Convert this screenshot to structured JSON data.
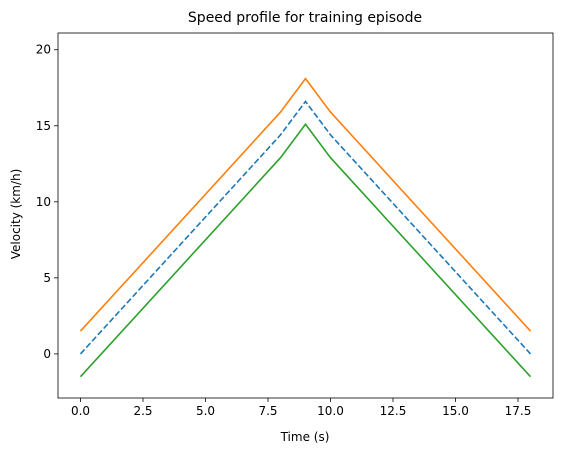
{
  "chart_data": {
    "type": "line",
    "title": "Speed profile for training episode",
    "xlabel": "Time (s)",
    "ylabel": "Velocity (km/h)",
    "xlim": [
      -0.9,
      18.9
    ],
    "ylim": [
      -2.9,
      21.1
    ],
    "xticks": [
      0.0,
      2.5,
      5.0,
      7.5,
      10.0,
      12.5,
      15.0,
      17.5
    ],
    "xtick_labels": [
      "0.0",
      "2.5",
      "5.0",
      "7.5",
      "10.0",
      "12.5",
      "15.0",
      "17.5"
    ],
    "yticks": [
      0,
      5,
      10,
      15,
      20
    ],
    "ytick_labels": [
      "0",
      "5",
      "10",
      "15",
      "20"
    ],
    "grid": false,
    "legend": "none",
    "x": [
      0,
      8,
      9,
      10,
      18
    ],
    "series": [
      {
        "values": [
          0.0,
          14.4,
          16.6,
          14.4,
          0.0
        ],
        "color": "#1f77b4",
        "style": "dashed"
      },
      {
        "values": [
          1.5,
          15.9,
          18.1,
          15.9,
          1.5
        ],
        "color": "#ff7f0e",
        "style": "solid"
      },
      {
        "values": [
          -1.5,
          12.9,
          15.1,
          12.9,
          -1.5
        ],
        "color": "#2ca02c",
        "style": "solid"
      }
    ]
  }
}
